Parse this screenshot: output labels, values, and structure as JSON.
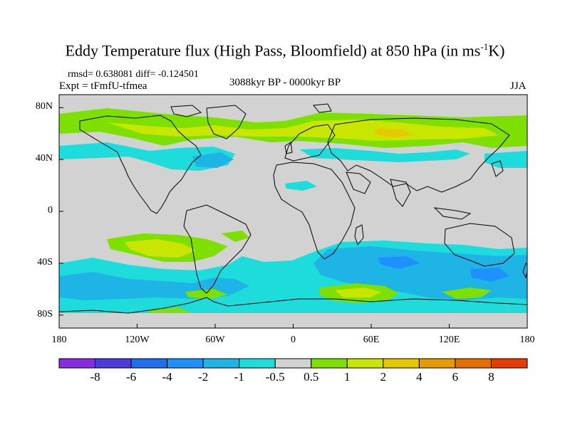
{
  "title": {
    "main": "Eddy Temperature flux (High Pass, Bloomfield) at 850 hPa (in ms",
    "sup": "-1",
    "end": "K)"
  },
  "stats": "rmsd= 0.638081 diff= -0.124501",
  "expt": "Expt = tFmfU-tfmea",
  "period": "3088kyr BP - 0000kyr BP",
  "season": "JJA",
  "y_ticks": [
    {
      "lat": 80,
      "label": "80N"
    },
    {
      "lat": 40,
      "label": "40N"
    },
    {
      "lat": 0,
      "label": "0"
    },
    {
      "lat": -40,
      "label": "40S"
    },
    {
      "lat": -80,
      "label": "80S"
    }
  ],
  "x_ticks": [
    {
      "lon": -180,
      "label": "180"
    },
    {
      "lon": -120,
      "label": "120W"
    },
    {
      "lon": -60,
      "label": "60W"
    },
    {
      "lon": 0,
      "label": "0"
    },
    {
      "lon": 60,
      "label": "60E"
    },
    {
      "lon": 120,
      "label": "120E"
    },
    {
      "lon": 180,
      "label": "180"
    }
  ],
  "colorbar": {
    "colors": [
      "#8a2be2",
      "#4b3ae0",
      "#1f6ef0",
      "#1e90ff",
      "#1fb4e6",
      "#1fdcdc",
      "#d2d2d2",
      "#7ee000",
      "#c8e600",
      "#e6c800",
      "#e69b00",
      "#e66e00",
      "#e63c00"
    ],
    "labels": [
      "-8",
      "-6",
      "-4",
      "-2",
      "-1",
      "-0.5",
      "0.5",
      "1",
      "2",
      "4",
      "6",
      "8"
    ]
  },
  "map_colors": {
    "land_bg": "#d2d2d2",
    "coast": "#000000"
  }
}
